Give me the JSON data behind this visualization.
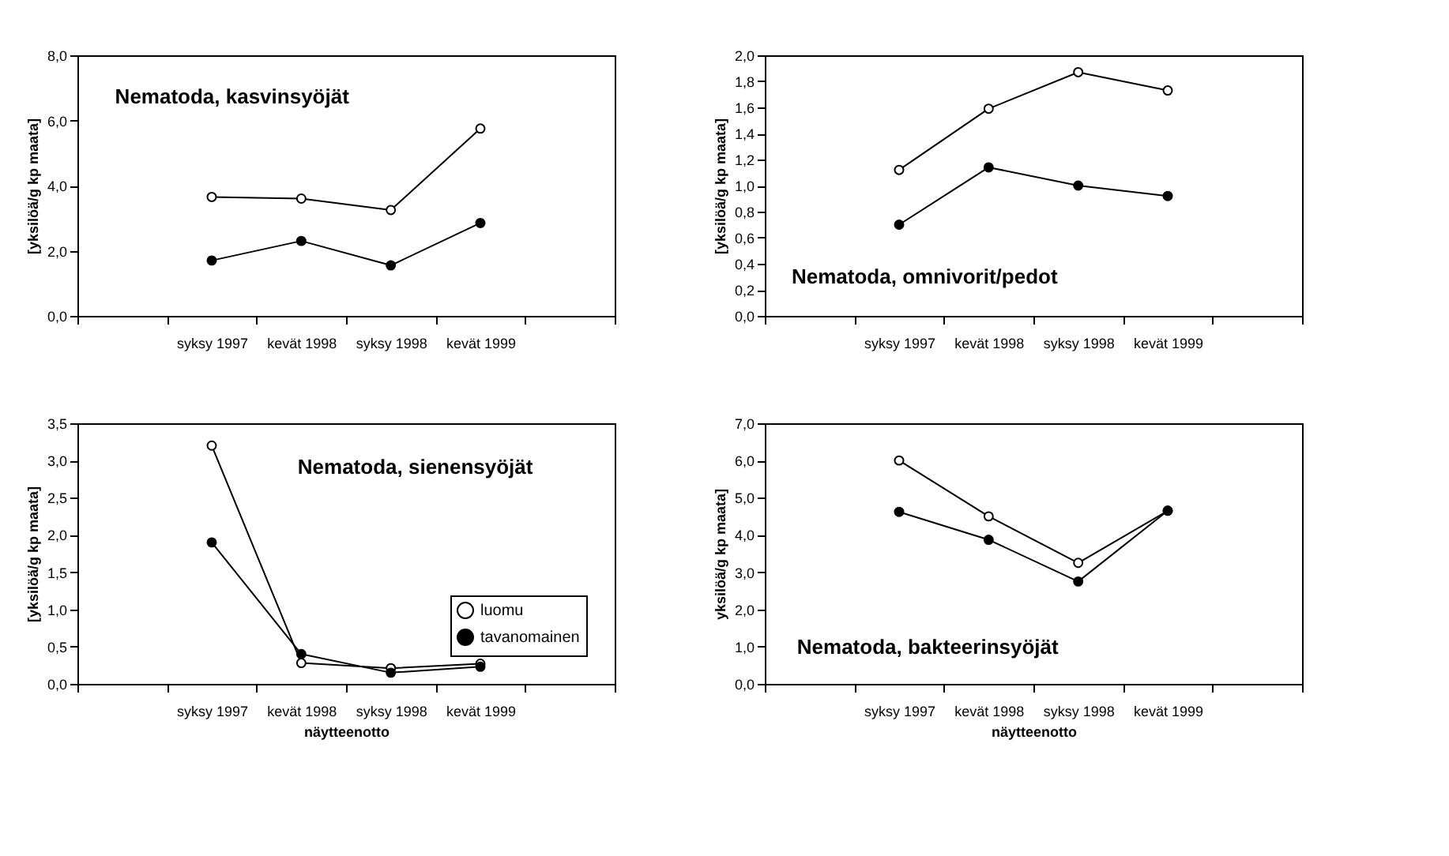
{
  "chart_data": [
    {
      "type": "line",
      "title": "Nematoda, kasvinsyöjät",
      "ylabel": "[yksilöä/g kp maata]",
      "categories": [
        null,
        "syksy 1997",
        "kevät 1998",
        "syksy 1998",
        "kevät 1999",
        null
      ],
      "marker": "circle",
      "ylim": [
        0,
        8
      ],
      "yticks": [
        {
          "value": 0,
          "label": "0,0"
        },
        {
          "value": 2,
          "label": "2,0"
        },
        {
          "value": 4,
          "label": "4,0"
        },
        {
          "value": 6,
          "label": "6,0"
        },
        {
          "value": 8,
          "label": "8,0"
        }
      ],
      "series": [
        {
          "color": "#ffffff",
          "values": [
            null,
            3.65,
            3.6,
            3.25,
            5.75,
            null
          ]
        },
        {
          "color": "#000000",
          "values": [
            null,
            1.7,
            2.3,
            1.55,
            2.85,
            null
          ]
        }
      ]
    },
    {
      "type": "line",
      "title": "Nematoda, omnivorit/pedot",
      "ylabel": "[yksilöä/g kp maata]",
      "categories": [
        null,
        "syksy 1997",
        "kevät 1998",
        "syksy 1998",
        "kevät 1999",
        null
      ],
      "marker": "circle",
      "ylim": [
        0,
        2
      ],
      "yticks": [
        {
          "value": 0,
          "label": "0,0"
        },
        {
          "value": 0.2,
          "label": "0,2"
        },
        {
          "value": 0.4,
          "label": "0,4"
        },
        {
          "value": 0.6,
          "label": "0,6"
        },
        {
          "value": 0.8,
          "label": "0,8"
        },
        {
          "value": 1,
          "label": "1,0"
        },
        {
          "value": 1.2,
          "label": "1,2"
        },
        {
          "value": 1.4,
          "label": "1,4"
        },
        {
          "value": 1.6,
          "label": "1,6"
        },
        {
          "value": 1.8,
          "label": "1,8"
        },
        {
          "value": 2,
          "label": "2,0"
        }
      ],
      "series": [
        {
          "color": "#ffffff",
          "values": [
            null,
            1.12,
            1.59,
            1.87,
            1.73,
            null
          ]
        },
        {
          "color": "#000000",
          "values": [
            null,
            0.7,
            1.14,
            1.0,
            0.92,
            null
          ]
        }
      ]
    },
    {
      "type": "line",
      "title": "Nematoda, sienensyöjät",
      "xlabel": "näytteenotto",
      "ylabel": "[yksilöä/g kp maata]",
      "categories": [
        null,
        "syksy 1997",
        "kevät 1998",
        "syksy 1998",
        "kevät 1999",
        null
      ],
      "marker": "circle",
      "legend": "bottom right",
      "ylim": [
        0,
        3.5
      ],
      "yticks": [
        {
          "value": 0,
          "label": "0,0"
        },
        {
          "value": 0.5,
          "label": "0,5"
        },
        {
          "value": 1,
          "label": "1,0"
        },
        {
          "value": 1.5,
          "label": "1,5"
        },
        {
          "value": 2,
          "label": "2,0"
        },
        {
          "value": 2.5,
          "label": "2,5"
        },
        {
          "value": 3,
          "label": "3,0"
        },
        {
          "value": 3.5,
          "label": "3,5"
        }
      ],
      "series": [
        {
          "name": "luomu",
          "color": "#ffffff",
          "values": [
            null,
            3.2,
            0.28,
            0.21,
            0.27,
            null
          ]
        },
        {
          "name": "tavanomainen",
          "color": "#000000",
          "values": [
            null,
            1.9,
            0.4,
            0.15,
            0.23,
            null
          ]
        }
      ]
    },
    {
      "type": "line",
      "title": "Nematoda, bakteerinsyöjät",
      "xlabel": "näytteenotto",
      "ylabel": "yksilöä/g kp maata]",
      "categories": [
        null,
        "syksy 1997",
        "kevät 1998",
        "syksy 1998",
        "kevät 1999",
        null
      ],
      "marker": "circle",
      "ylim": [
        0,
        7
      ],
      "yticks": [
        {
          "value": 0,
          "label": "0,0"
        },
        {
          "value": 1,
          "label": "1,0"
        },
        {
          "value": 2,
          "label": "2,0"
        },
        {
          "value": 3,
          "label": "3,0"
        },
        {
          "value": 4,
          "label": "4,0"
        },
        {
          "value": 5,
          "label": "5,0"
        },
        {
          "value": 6,
          "label": "6,0"
        },
        {
          "value": 7,
          "label": "7,0"
        }
      ],
      "series": [
        {
          "color": "#ffffff",
          "values": [
            null,
            6.0,
            4.5,
            3.25,
            4.65,
            null
          ]
        },
        {
          "color": "#000000",
          "values": [
            null,
            4.62,
            3.87,
            2.75,
            4.65,
            null
          ]
        }
      ]
    }
  ]
}
